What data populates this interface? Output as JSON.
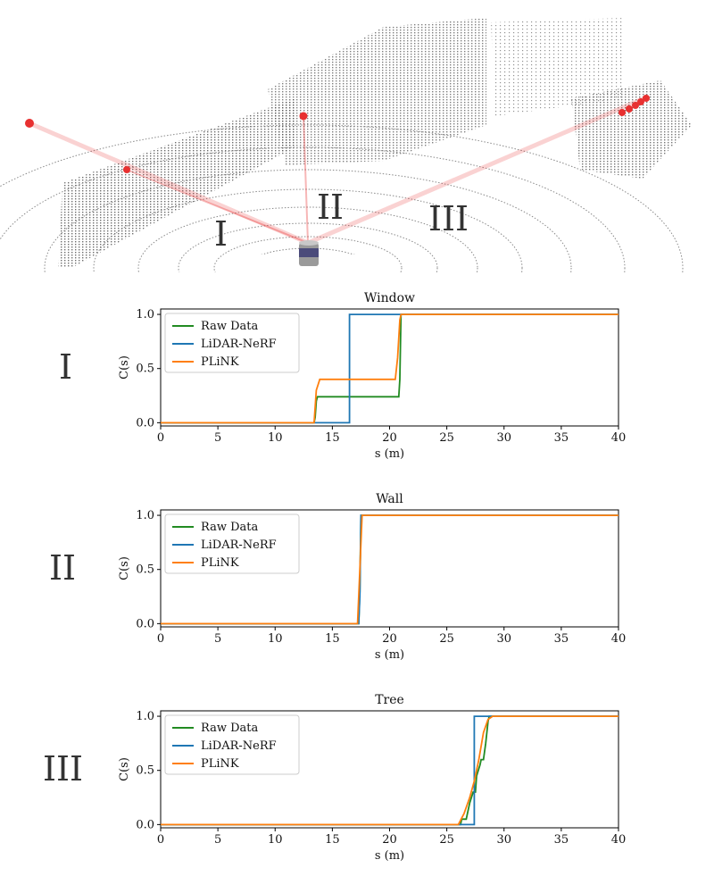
{
  "scene": {
    "ray_labels": [
      "I",
      "II",
      "III"
    ],
    "ray_color": "#e83030"
  },
  "chart_data": [
    {
      "type": "line",
      "row_label": "I",
      "title": "Window",
      "xlabel": "s (m)",
      "ylabel": "C(s)",
      "xlim": [
        0,
        40
      ],
      "ylim": [
        0,
        1
      ],
      "xticks": [
        "0",
        "5",
        "10",
        "15",
        "20",
        "25",
        "30",
        "35",
        "40"
      ],
      "yticks": [
        "0.0",
        "0.5",
        "1.0"
      ],
      "grid": false,
      "legend": "top-left",
      "series": [
        {
          "name": "Raw Data",
          "color": "#228b22",
          "x": [
            0,
            13.4,
            13.5,
            13.6,
            13.7,
            20.8,
            20.9,
            21.0,
            40
          ],
          "y": [
            0,
            0,
            0.05,
            0.2,
            0.24,
            0.24,
            0.4,
            1.0,
            1.0
          ]
        },
        {
          "name": "LiDAR-NeRF",
          "color": "#1f77b4",
          "x": [
            0,
            16.5,
            16.5,
            40
          ],
          "y": [
            0,
            0,
            1.0,
            1.0
          ]
        },
        {
          "name": "PLiNK",
          "color": "#ff7f0e",
          "x": [
            0,
            13.4,
            13.6,
            13.9,
            20.5,
            20.7,
            20.9,
            21.0,
            40
          ],
          "y": [
            0,
            0,
            0.3,
            0.4,
            0.4,
            0.6,
            0.95,
            1.0,
            1.0
          ]
        }
      ]
    },
    {
      "type": "line",
      "row_label": "II",
      "title": "Wall",
      "xlabel": "s (m)",
      "ylabel": "C(s)",
      "xlim": [
        0,
        40
      ],
      "ylim": [
        0,
        1
      ],
      "xticks": [
        "0",
        "5",
        "10",
        "15",
        "20",
        "25",
        "30",
        "35",
        "40"
      ],
      "yticks": [
        "0.0",
        "0.5",
        "1.0"
      ],
      "grid": false,
      "legend": "top-left",
      "series": [
        {
          "name": "Raw Data",
          "color": "#228b22",
          "x": [
            0,
            17.3,
            17.4,
            17.5,
            40
          ],
          "y": [
            0,
            0,
            0.3,
            1.0,
            1.0
          ]
        },
        {
          "name": "LiDAR-NeRF",
          "color": "#1f77b4",
          "x": [
            0,
            17.3,
            17.4,
            17.5,
            40
          ],
          "y": [
            0,
            0,
            0.25,
            1.0,
            1.0
          ]
        },
        {
          "name": "PLiNK",
          "color": "#ff7f0e",
          "x": [
            0,
            17.2,
            17.4,
            17.6,
            40
          ],
          "y": [
            0,
            0,
            0.5,
            1.0,
            1.0
          ]
        }
      ]
    },
    {
      "type": "line",
      "row_label": "III",
      "title": "Tree",
      "xlabel": "s (m)",
      "ylabel": "C(s)",
      "xlim": [
        0,
        40
      ],
      "ylim": [
        0,
        1
      ],
      "xticks": [
        "0",
        "5",
        "10",
        "15",
        "20",
        "25",
        "30",
        "35",
        "40"
      ],
      "yticks": [
        "0.0",
        "0.5",
        "1.0"
      ],
      "grid": false,
      "legend": "top-left",
      "series": [
        {
          "name": "Raw Data",
          "color": "#228b22",
          "x": [
            0,
            26.2,
            26.3,
            26.7,
            26.8,
            27.0,
            27.3,
            27.5,
            27.6,
            27.9,
            28.0,
            28.2,
            28.4,
            28.6,
            28.7,
            40
          ],
          "y": [
            0,
            0,
            0.05,
            0.05,
            0.1,
            0.2,
            0.3,
            0.3,
            0.45,
            0.55,
            0.6,
            0.6,
            0.75,
            0.95,
            1.0,
            1.0
          ]
        },
        {
          "name": "LiDAR-NeRF",
          "color": "#1f77b4",
          "x": [
            0,
            27.4,
            27.4,
            31.2,
            31.3,
            40
          ],
          "y": [
            0,
            0,
            1.0,
            1.0,
            1.0,
            1.0
          ]
        },
        {
          "name": "PLiNK",
          "color": "#ff7f0e",
          "x": [
            0,
            26.0,
            26.5,
            27.0,
            27.4,
            27.8,
            28.2,
            28.6,
            29.0,
            40
          ],
          "y": [
            0,
            0,
            0.1,
            0.25,
            0.4,
            0.6,
            0.85,
            0.97,
            1.0,
            1.0
          ]
        }
      ]
    }
  ]
}
